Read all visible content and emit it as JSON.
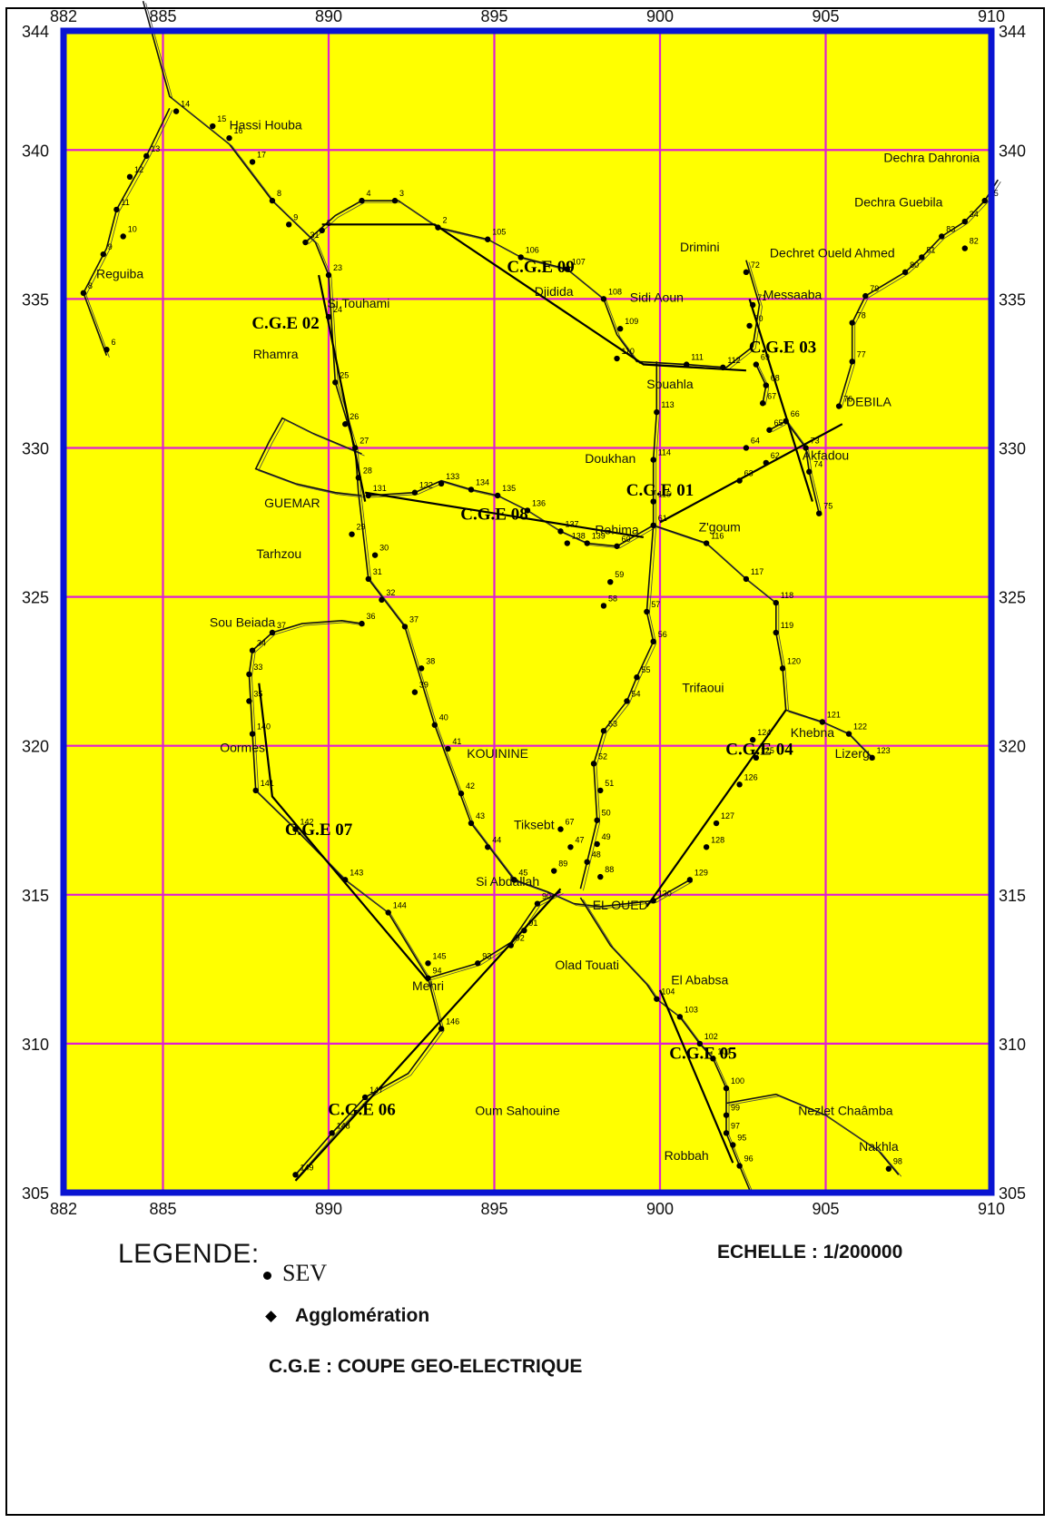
{
  "map": {
    "x_ticks": [
      "882",
      "885",
      "890",
      "895",
      "900",
      "905",
      "910"
    ],
    "y_ticks_left": [
      "344",
      "340",
      "335",
      "330",
      "325",
      "320",
      "315",
      "310",
      "305"
    ],
    "y_ticks_right": [
      "344",
      "340",
      "335",
      "330",
      "325",
      "320",
      "315",
      "310",
      "305"
    ],
    "colors": {
      "background": "#ffff00",
      "frame": "#0a14d2",
      "grid": "#e01fd2",
      "road": "#111111",
      "profile": "#000000"
    },
    "places": [
      {
        "name": "Hassi Houba",
        "x": 888.1,
        "y": 340.7
      },
      {
        "name": "Reguiba",
        "x": 883.7,
        "y": 335.7
      },
      {
        "name": "Si Touhami",
        "x": 890.9,
        "y": 334.7
      },
      {
        "name": "Rhamra",
        "x": 888.4,
        "y": 333.0
      },
      {
        "name": "GUEMAR",
        "x": 888.9,
        "y": 328.0
      },
      {
        "name": "Tarhzou",
        "x": 888.5,
        "y": 326.3
      },
      {
        "name": "Sou Beiada",
        "x": 887.4,
        "y": 324.0
      },
      {
        "name": "Oormes",
        "x": 887.4,
        "y": 319.8
      },
      {
        "name": "KOUININE",
        "x": 895.1,
        "y": 319.6
      },
      {
        "name": "Tiksebt",
        "x": 896.2,
        "y": 317.2
      },
      {
        "name": "Si Abdallah",
        "x": 895.4,
        "y": 315.3
      },
      {
        "name": "EL OUED",
        "x": 898.8,
        "y": 314.5
      },
      {
        "name": "Mehri",
        "x": 893.0,
        "y": 311.8
      },
      {
        "name": "Olad Touati",
        "x": 897.8,
        "y": 312.5
      },
      {
        "name": "El Ababsa",
        "x": 901.2,
        "y": 312.0
      },
      {
        "name": "Oum Sahouine",
        "x": 895.7,
        "y": 307.6
      },
      {
        "name": "Robbah",
        "x": 900.8,
        "y": 306.1
      },
      {
        "name": "Nezlet Chaâmba",
        "x": 905.6,
        "y": 307.6
      },
      {
        "name": "Nakhla",
        "x": 906.6,
        "y": 306.4
      },
      {
        "name": "Djidida",
        "x": 896.8,
        "y": 335.1
      },
      {
        "name": "Sidi Aoun",
        "x": 899.9,
        "y": 334.9
      },
      {
        "name": "Drimini",
        "x": 901.2,
        "y": 336.6
      },
      {
        "name": "Messaaba",
        "x": 904.0,
        "y": 335.0
      },
      {
        "name": "Souahla",
        "x": 900.3,
        "y": 332.0
      },
      {
        "name": "DEBILA",
        "x": 906.3,
        "y": 331.4
      },
      {
        "name": "Doukhan",
        "x": 898.5,
        "y": 329.5
      },
      {
        "name": "Akfadou",
        "x": 905.0,
        "y": 329.6
      },
      {
        "name": "Rehima",
        "x": 898.7,
        "y": 327.1
      },
      {
        "name": "Z'goum",
        "x": 901.8,
        "y": 327.2
      },
      {
        "name": "Trifaoui",
        "x": 901.3,
        "y": 321.8
      },
      {
        "name": "Khebna",
        "x": 904.6,
        "y": 320.3
      },
      {
        "name": "Lizerg",
        "x": 905.8,
        "y": 319.6
      },
      {
        "name": "Dechra Dahronia",
        "x": 908.2,
        "y": 339.6
      },
      {
        "name": "Dechra Guebila",
        "x": 907.2,
        "y": 338.1
      },
      {
        "name": "Dechret Oueld Ahmed",
        "x": 905.2,
        "y": 336.4
      }
    ],
    "profiles": [
      {
        "label": "C.G.E 01",
        "lx": 900.0,
        "ly": 328.4,
        "pts": [
          [
            900.0,
            327.5
          ],
          [
            905.5,
            330.8
          ]
        ]
      },
      {
        "label": "C.G.E 02",
        "lx": 888.7,
        "ly": 334.0,
        "pts": [
          [
            889.7,
            335.8
          ],
          [
            891.1,
            328.2
          ]
        ]
      },
      {
        "label": "C.G.E 03",
        "lx": 903.7,
        "ly": 333.2,
        "pts": [
          [
            902.7,
            335.0
          ],
          [
            904.6,
            328.2
          ]
        ]
      },
      {
        "label": "C.G.E 04",
        "lx": 903.0,
        "ly": 319.7,
        "pts": [
          [
            899.6,
            314.6
          ],
          [
            903.8,
            321.2
          ]
        ]
      },
      {
        "label": "C.G.E 05",
        "lx": 901.3,
        "ly": 309.5,
        "pts": [
          [
            900.0,
            311.8
          ],
          [
            902.2,
            306.0
          ]
        ]
      },
      {
        "label": "C.G.E 06",
        "lx": 891.0,
        "ly": 307.6,
        "pts": [
          [
            889.0,
            305.4
          ],
          [
            897.0,
            315.2
          ]
        ]
      },
      {
        "label": "C.G.E 07",
        "lx": 889.7,
        "ly": 317.0,
        "pts": [
          [
            887.9,
            322.1
          ],
          [
            888.3,
            318.3
          ],
          [
            893.0,
            312.1
          ]
        ]
      },
      {
        "label": "C.G.E 08",
        "lx": 895.0,
        "ly": 327.6,
        "pts": [
          [
            891.1,
            328.5
          ],
          [
            899.5,
            327.0
          ]
        ]
      },
      {
        "label": "C.G.E 09",
        "lx": 896.4,
        "ly": 335.9,
        "pts": [
          [
            889.8,
            337.5
          ],
          [
            893.2,
            337.5
          ],
          [
            899.5,
            332.8
          ],
          [
            902.6,
            332.6
          ]
        ]
      }
    ],
    "sev": [
      {
        "n": "14",
        "x": 885.4,
        "y": 341.3
      },
      {
        "n": "15",
        "x": 886.5,
        "y": 340.8
      },
      {
        "n": "16",
        "x": 887.0,
        "y": 340.4
      },
      {
        "n": "17",
        "x": 887.7,
        "y": 339.6
      },
      {
        "n": "8",
        "x": 888.3,
        "y": 338.3
      },
      {
        "n": "9",
        "x": 888.8,
        "y": 337.5
      },
      {
        "n": "31",
        "x": 889.3,
        "y": 336.9
      },
      {
        "n": "13",
        "x": 884.5,
        "y": 339.8
      },
      {
        "n": "12",
        "x": 884.0,
        "y": 339.1
      },
      {
        "n": "11",
        "x": 883.6,
        "y": 338.0
      },
      {
        "n": "10",
        "x": 883.8,
        "y": 337.1
      },
      {
        "n": "9",
        "x": 883.2,
        "y": 336.5
      },
      {
        "n": "8",
        "x": 882.6,
        "y": 335.2
      },
      {
        "n": "6",
        "x": 883.3,
        "y": 333.3
      },
      {
        "n": "5",
        "x": 889.8,
        "y": 337.3
      },
      {
        "n": "4",
        "x": 891.0,
        "y": 338.3
      },
      {
        "n": "3",
        "x": 892.0,
        "y": 338.3
      },
      {
        "n": "2",
        "x": 893.3,
        "y": 337.4
      },
      {
        "n": "105",
        "x": 894.8,
        "y": 337.0
      },
      {
        "n": "106",
        "x": 895.8,
        "y": 336.4
      },
      {
        "n": "107",
        "x": 897.2,
        "y": 336.0
      },
      {
        "n": "108",
        "x": 898.3,
        "y": 335.0
      },
      {
        "n": "109",
        "x": 898.8,
        "y": 334.0
      },
      {
        "n": "110",
        "x": 898.7,
        "y": 333.0
      },
      {
        "n": "111",
        "x": 900.8,
        "y": 332.8
      },
      {
        "n": "112",
        "x": 901.9,
        "y": 332.7
      },
      {
        "n": "113",
        "x": 899.9,
        "y": 331.2
      },
      {
        "n": "114",
        "x": 899.8,
        "y": 329.6
      },
      {
        "n": "115",
        "x": 899.8,
        "y": 328.2
      },
      {
        "n": "23",
        "x": 890.0,
        "y": 335.8
      },
      {
        "n": "24",
        "x": 890.0,
        "y": 334.4
      },
      {
        "n": "25",
        "x": 890.2,
        "y": 332.2
      },
      {
        "n": "26",
        "x": 890.5,
        "y": 330.8
      },
      {
        "n": "27",
        "x": 890.8,
        "y": 330.0
      },
      {
        "n": "28",
        "x": 890.9,
        "y": 329.0
      },
      {
        "n": "29",
        "x": 890.7,
        "y": 327.1
      },
      {
        "n": "30",
        "x": 891.4,
        "y": 326.4
      },
      {
        "n": "31",
        "x": 891.2,
        "y": 325.6
      },
      {
        "n": "32",
        "x": 891.6,
        "y": 324.9
      },
      {
        "n": "36",
        "x": 891.0,
        "y": 324.1
      },
      {
        "n": "37",
        "x": 892.3,
        "y": 324.0
      },
      {
        "n": "38",
        "x": 892.8,
        "y": 322.6
      },
      {
        "n": "39",
        "x": 892.6,
        "y": 321.8
      },
      {
        "n": "40",
        "x": 893.2,
        "y": 320.7
      },
      {
        "n": "41",
        "x": 893.6,
        "y": 319.9
      },
      {
        "n": "42",
        "x": 894.0,
        "y": 318.4
      },
      {
        "n": "43",
        "x": 894.3,
        "y": 317.4
      },
      {
        "n": "44",
        "x": 894.8,
        "y": 316.6
      },
      {
        "n": "45",
        "x": 895.6,
        "y": 315.5
      },
      {
        "n": "131",
        "x": 891.2,
        "y": 328.4
      },
      {
        "n": "132",
        "x": 892.6,
        "y": 328.5
      },
      {
        "n": "133",
        "x": 893.4,
        "y": 328.8
      },
      {
        "n": "134",
        "x": 894.3,
        "y": 328.6
      },
      {
        "n": "135",
        "x": 895.1,
        "y": 328.4
      },
      {
        "n": "136",
        "x": 896.0,
        "y": 327.9
      },
      {
        "n": "137",
        "x": 897.0,
        "y": 327.2
      },
      {
        "n": "138",
        "x": 897.2,
        "y": 326.8
      },
      {
        "n": "139",
        "x": 897.8,
        "y": 326.8
      },
      {
        "n": "60",
        "x": 898.7,
        "y": 326.7
      },
      {
        "n": "61",
        "x": 899.8,
        "y": 327.4
      },
      {
        "n": "59",
        "x": 898.5,
        "y": 325.5
      },
      {
        "n": "58",
        "x": 898.3,
        "y": 324.7
      },
      {
        "n": "57",
        "x": 899.6,
        "y": 324.5
      },
      {
        "n": "56",
        "x": 899.8,
        "y": 323.5
      },
      {
        "n": "55",
        "x": 899.3,
        "y": 322.3
      },
      {
        "n": "54",
        "x": 899.0,
        "y": 321.5
      },
      {
        "n": "53",
        "x": 898.3,
        "y": 320.5
      },
      {
        "n": "52",
        "x": 898.0,
        "y": 319.4
      },
      {
        "n": "51",
        "x": 898.2,
        "y": 318.5
      },
      {
        "n": "50",
        "x": 898.1,
        "y": 317.5
      },
      {
        "n": "49",
        "x": 898.1,
        "y": 316.7
      },
      {
        "n": "48",
        "x": 897.8,
        "y": 316.1
      },
      {
        "n": "47",
        "x": 897.3,
        "y": 316.6
      },
      {
        "n": "67",
        "x": 897.0,
        "y": 317.2
      },
      {
        "n": "88",
        "x": 898.2,
        "y": 315.6
      },
      {
        "n": "89",
        "x": 896.8,
        "y": 315.8
      },
      {
        "n": "90",
        "x": 896.3,
        "y": 314.7
      },
      {
        "n": "91",
        "x": 895.9,
        "y": 313.8
      },
      {
        "n": "92",
        "x": 895.5,
        "y": 313.3
      },
      {
        "n": "93",
        "x": 894.5,
        "y": 312.7
      },
      {
        "n": "94",
        "x": 893.0,
        "y": 312.2
      },
      {
        "n": "146",
        "x": 893.4,
        "y": 310.5
      },
      {
        "n": "147",
        "x": 891.1,
        "y": 308.2
      },
      {
        "n": "148",
        "x": 890.1,
        "y": 307.0
      },
      {
        "n": "149",
        "x": 889.0,
        "y": 305.6
      },
      {
        "n": "145",
        "x": 893.0,
        "y": 312.7
      },
      {
        "n": "144",
        "x": 891.8,
        "y": 314.4
      },
      {
        "n": "143",
        "x": 890.5,
        "y": 315.5
      },
      {
        "n": "142",
        "x": 889.0,
        "y": 317.2
      },
      {
        "n": "141",
        "x": 887.8,
        "y": 318.5
      },
      {
        "n": "140",
        "x": 887.7,
        "y": 320.4
      },
      {
        "n": "35",
        "x": 887.6,
        "y": 321.5
      },
      {
        "n": "33",
        "x": 887.6,
        "y": 322.4
      },
      {
        "n": "34",
        "x": 887.7,
        "y": 323.2
      },
      {
        "n": "37",
        "x": 888.3,
        "y": 323.8
      },
      {
        "n": "116",
        "x": 901.4,
        "y": 326.8
      },
      {
        "n": "117",
        "x": 902.6,
        "y": 325.6
      },
      {
        "n": "118",
        "x": 903.5,
        "y": 324.8
      },
      {
        "n": "119",
        "x": 903.5,
        "y": 323.8
      },
      {
        "n": "120",
        "x": 903.7,
        "y": 322.6
      },
      {
        "n": "121",
        "x": 904.9,
        "y": 320.8
      },
      {
        "n": "122",
        "x": 905.7,
        "y": 320.4
      },
      {
        "n": "123",
        "x": 906.4,
        "y": 319.6
      },
      {
        "n": "124",
        "x": 902.8,
        "y": 320.2
      },
      {
        "n": "125",
        "x": 902.9,
        "y": 319.6
      },
      {
        "n": "126",
        "x": 902.4,
        "y": 318.7
      },
      {
        "n": "127",
        "x": 901.7,
        "y": 317.4
      },
      {
        "n": "128",
        "x": 901.4,
        "y": 316.6
      },
      {
        "n": "129",
        "x": 900.9,
        "y": 315.5
      },
      {
        "n": "130",
        "x": 899.8,
        "y": 314.8
      },
      {
        "n": "104",
        "x": 899.9,
        "y": 311.5
      },
      {
        "n": "103",
        "x": 900.6,
        "y": 310.9
      },
      {
        "n": "102",
        "x": 901.2,
        "y": 310.0
      },
      {
        "n": "101",
        "x": 901.6,
        "y": 309.5
      },
      {
        "n": "100",
        "x": 902.0,
        "y": 308.5
      },
      {
        "n": "99",
        "x": 902.0,
        "y": 307.6
      },
      {
        "n": "97",
        "x": 902.0,
        "y": 307.0
      },
      {
        "n": "95",
        "x": 902.2,
        "y": 306.6
      },
      {
        "n": "96",
        "x": 902.4,
        "y": 305.9
      },
      {
        "n": "98",
        "x": 906.9,
        "y": 305.8
      },
      {
        "n": "62",
        "x": 903.2,
        "y": 329.5
      },
      {
        "n": "63",
        "x": 902.4,
        "y": 328.9
      },
      {
        "n": "64",
        "x": 902.6,
        "y": 330.0
      },
      {
        "n": "65",
        "x": 903.3,
        "y": 330.6
      },
      {
        "n": "66",
        "x": 903.8,
        "y": 330.9
      },
      {
        "n": "67",
        "x": 903.1,
        "y": 331.5
      },
      {
        "n": "68",
        "x": 903.2,
        "y": 332.1
      },
      {
        "n": "69",
        "x": 902.9,
        "y": 332.8
      },
      {
        "n": "70",
        "x": 902.7,
        "y": 334.1
      },
      {
        "n": "71",
        "x": 902.8,
        "y": 334.8
      },
      {
        "n": "72",
        "x": 902.6,
        "y": 335.9
      },
      {
        "n": "73",
        "x": 904.4,
        "y": 330.0
      },
      {
        "n": "74",
        "x": 904.5,
        "y": 329.2
      },
      {
        "n": "75",
        "x": 904.8,
        "y": 327.8
      },
      {
        "n": "76",
        "x": 905.4,
        "y": 331.4
      },
      {
        "n": "77",
        "x": 905.8,
        "y": 332.9
      },
      {
        "n": "78",
        "x": 905.8,
        "y": 334.2
      },
      {
        "n": "79",
        "x": 906.2,
        "y": 335.1
      },
      {
        "n": "80",
        "x": 907.4,
        "y": 335.9
      },
      {
        "n": "81",
        "x": 907.9,
        "y": 336.4
      },
      {
        "n": "82",
        "x": 909.2,
        "y": 336.7
      },
      {
        "n": "83",
        "x": 908.5,
        "y": 337.1
      },
      {
        "n": "34",
        "x": 909.2,
        "y": 337.6
      },
      {
        "n": "35",
        "x": 909.8,
        "y": 338.3
      }
    ]
  },
  "legend": {
    "title": "LEGENDE:",
    "sev": "SEV",
    "agglomeration": "Agglomération",
    "cge": "C.G.E : COUPE GEO-ELECTRIQUE"
  },
  "scale": "ECHELLE : 1/200000"
}
